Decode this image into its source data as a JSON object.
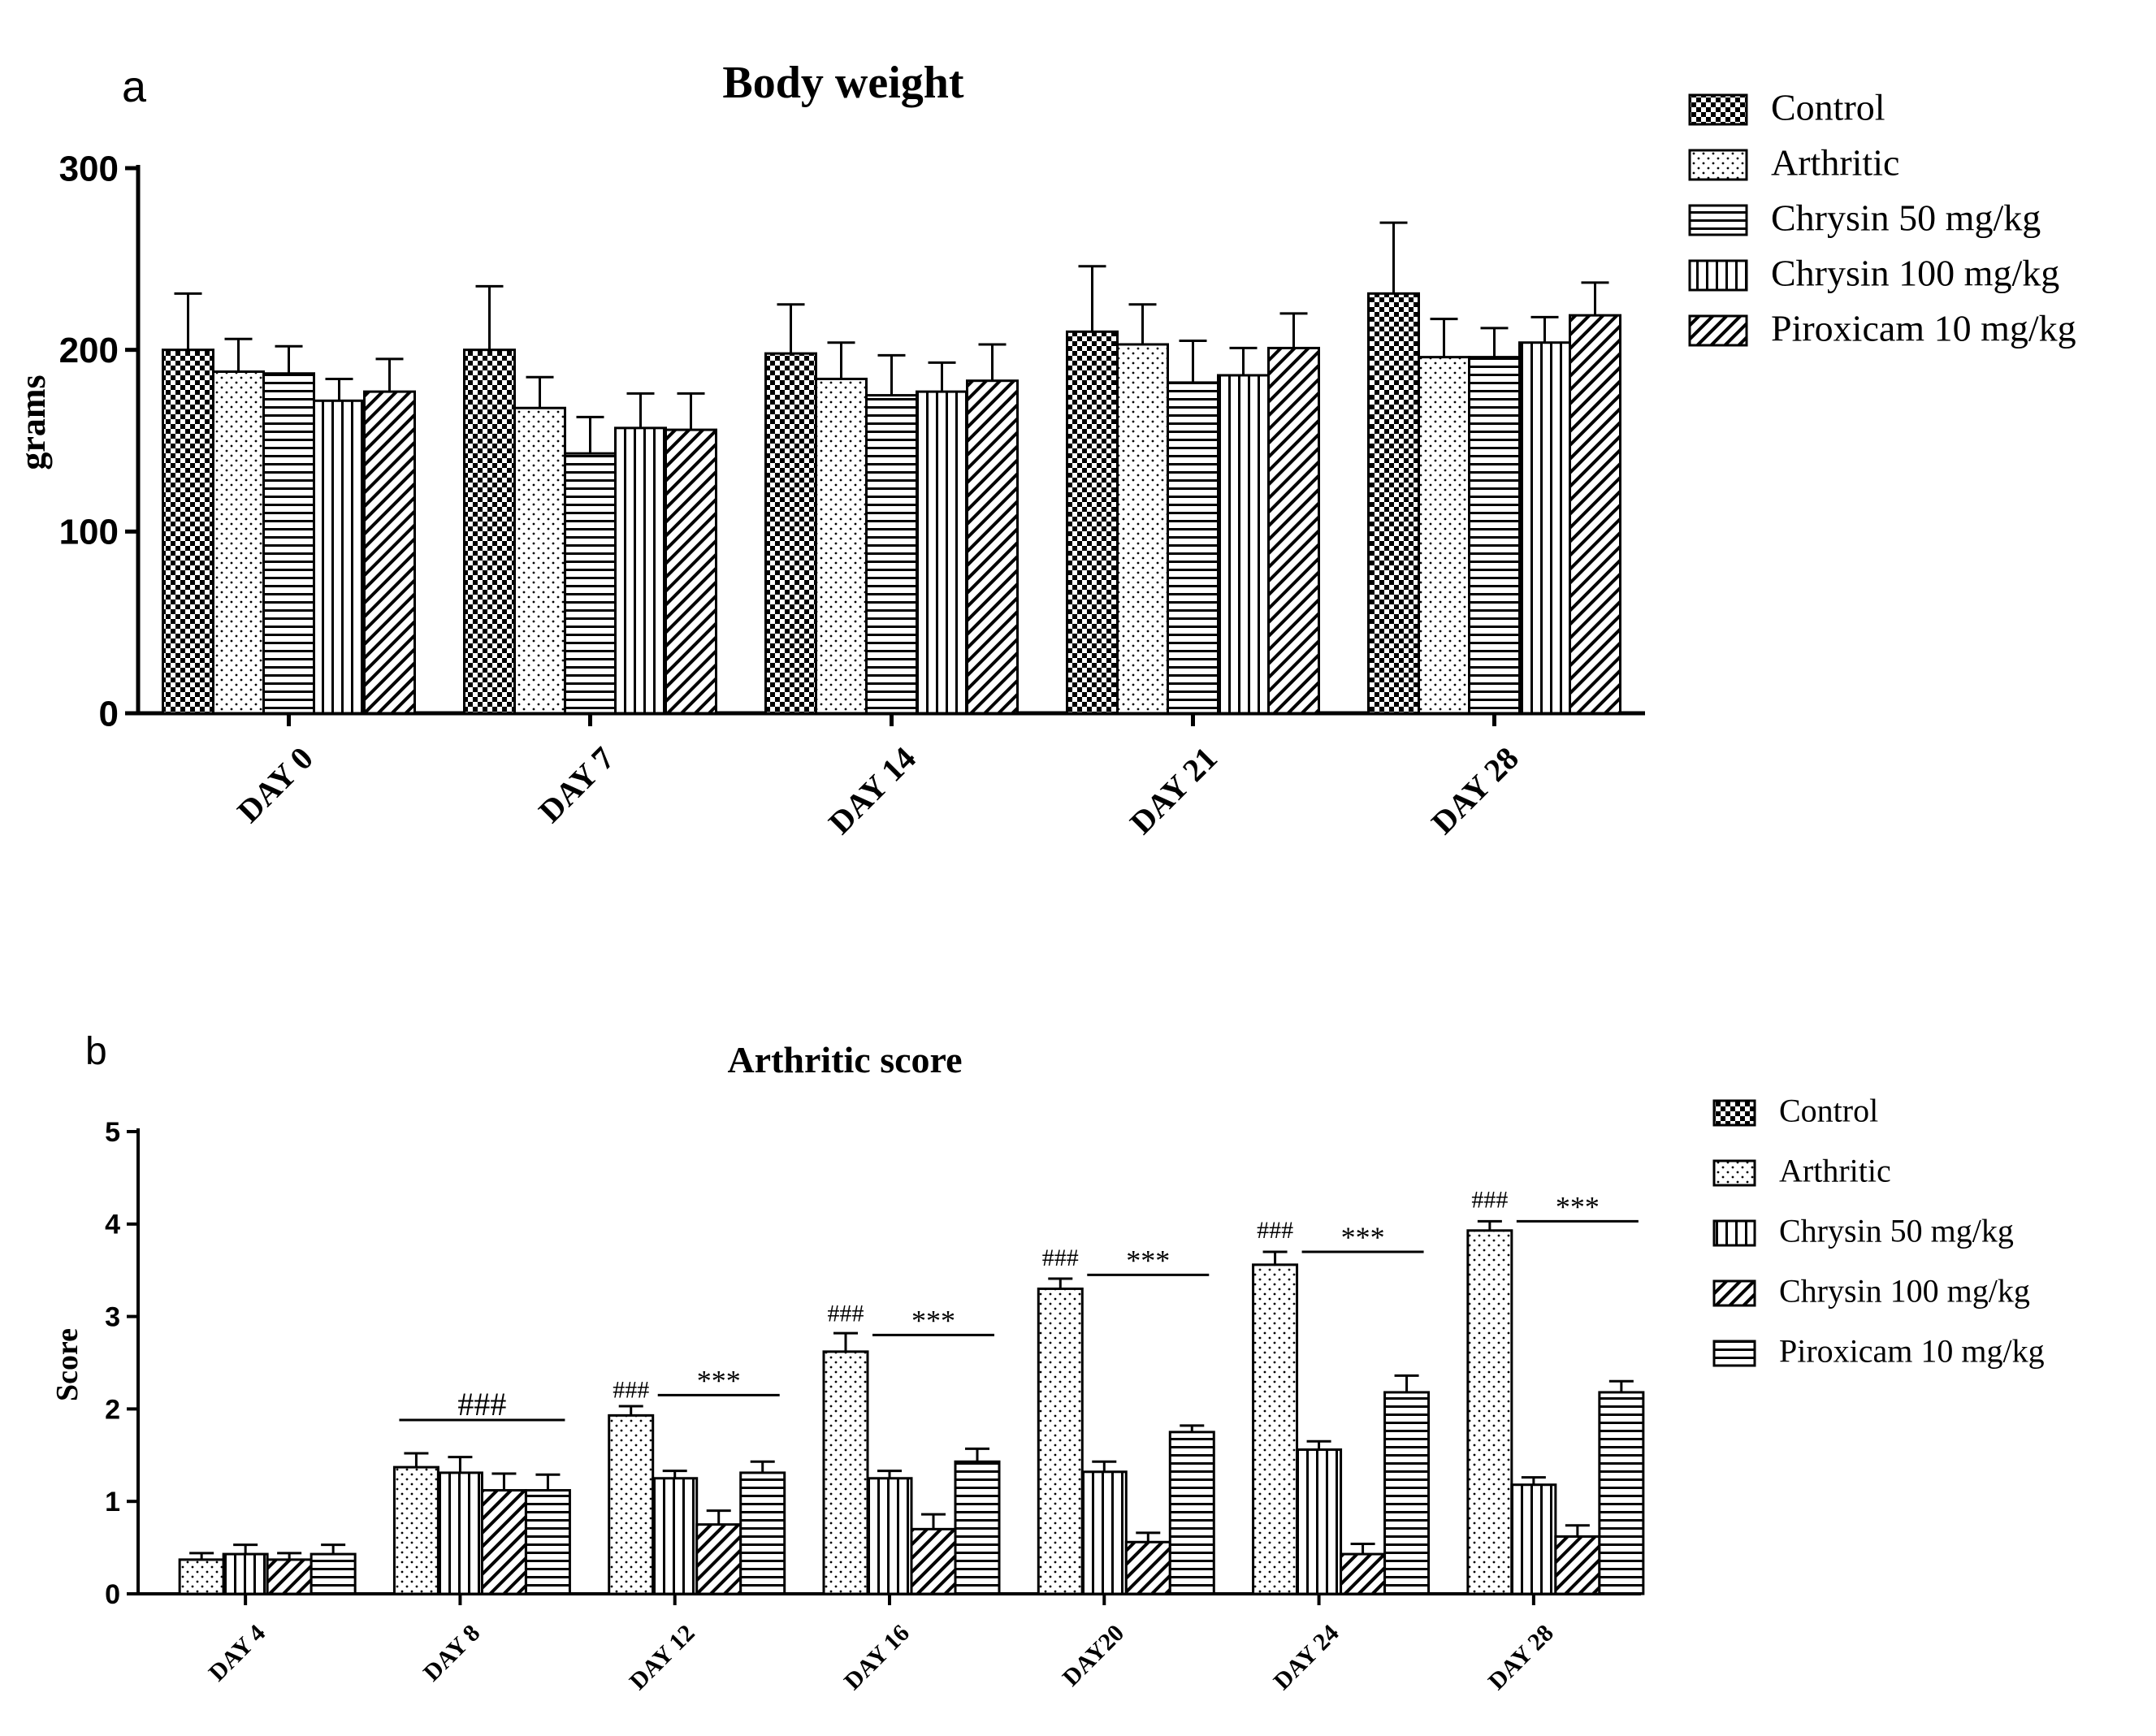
{
  "colors": {
    "ink": "#000000",
    "paper": "#ffffff"
  },
  "chart_data": [
    {
      "panel": "a",
      "type": "bar",
      "title": "Body weight",
      "xlabel": "",
      "ylabel": "grams",
      "ylim": [
        0,
        300
      ],
      "yticks": [
        0,
        100,
        200,
        300
      ],
      "categories": [
        "DAY 0",
        "DAY 7",
        "DAY 14",
        "DAY 21",
        "DAY 28"
      ],
      "legend_position": "top-right",
      "series": [
        {
          "name": "Control",
          "pattern": "checker",
          "values": [
            200,
            200,
            198,
            210,
            231
          ],
          "errors": [
            31,
            35,
            27,
            36,
            39
          ]
        },
        {
          "name": "Arthritic",
          "pattern": "dots",
          "values": [
            188,
            168,
            184,
            203,
            196
          ],
          "errors": [
            18,
            17,
            20,
            22,
            21
          ]
        },
        {
          "name": "Chrysin 50 mg/kg",
          "pattern": "hlines",
          "values": [
            187,
            143,
            175,
            182,
            196
          ],
          "errors": [
            15,
            20,
            22,
            23,
            16
          ]
        },
        {
          "name": "Chrysin 100 mg/kg",
          "pattern": "vlines",
          "values": [
            172,
            157,
            177,
            186,
            204
          ],
          "errors": [
            12,
            19,
            16,
            15,
            14
          ]
        },
        {
          "name": "Piroxicam 10 mg/kg",
          "pattern": "diag",
          "values": [
            177,
            156,
            183,
            201,
            219
          ],
          "errors": [
            18,
            20,
            20,
            19,
            18
          ]
        }
      ]
    },
    {
      "panel": "b",
      "type": "bar",
      "title": "Arthritic score",
      "xlabel": "",
      "ylabel": "Score",
      "ylim": [
        0,
        5
      ],
      "yticks": [
        0,
        1,
        2,
        3,
        4,
        5
      ],
      "categories": [
        "DAY 4",
        "DAY 8",
        "DAY 12",
        "DAY 16",
        "DAY20",
        "DAY 24",
        "DAY 28"
      ],
      "legend_position": "top-right",
      "series": [
        {
          "name": "Control",
          "pattern": "checker",
          "values": [
            0,
            0,
            0,
            0,
            0,
            0,
            0
          ],
          "errors": [
            0,
            0,
            0,
            0,
            0,
            0,
            0
          ]
        },
        {
          "name": "Arthritic",
          "pattern": "dots",
          "values": [
            0.37,
            1.37,
            1.93,
            2.62,
            3.3,
            3.56,
            3.93
          ],
          "errors": [
            0.07,
            0.15,
            0.1,
            0.2,
            0.11,
            0.14,
            0.1
          ]
        },
        {
          "name": "Chrysin 50 mg/kg",
          "pattern": "vlines",
          "values": [
            0.43,
            1.31,
            1.25,
            1.25,
            1.32,
            1.56,
            1.18
          ],
          "errors": [
            0.1,
            0.17,
            0.08,
            0.08,
            0.11,
            0.09,
            0.08
          ]
        },
        {
          "name": "Chrysin 100 mg/kg",
          "pattern": "diag",
          "values": [
            0.37,
            1.12,
            0.75,
            0.7,
            0.56,
            0.43,
            0.62
          ],
          "errors": [
            0.07,
            0.18,
            0.15,
            0.16,
            0.1,
            0.11,
            0.12
          ]
        },
        {
          "name": "Piroxicam 10 mg/kg",
          "pattern": "hlines",
          "values": [
            0.43,
            1.12,
            1.31,
            1.43,
            1.75,
            2.18,
            2.18
          ],
          "errors": [
            0.1,
            0.17,
            0.12,
            0.14,
            0.07,
            0.18,
            0.12
          ]
        }
      ],
      "annotations": [
        {
          "text": "###",
          "category": 1,
          "from_bar": 1,
          "to_bar": 4,
          "y": 1.88,
          "style": "line"
        },
        {
          "text": "###",
          "category": 2,
          "bar": 1,
          "y": 2.12,
          "style": "above-bar"
        },
        {
          "text": "***",
          "category": 2,
          "from_bar": 2,
          "to_bar": 4,
          "y": 2.15,
          "style": "line"
        },
        {
          "text": "###",
          "category": 3,
          "bar": 1,
          "y": 2.95,
          "style": "above-bar"
        },
        {
          "text": "***",
          "category": 3,
          "from_bar": 2,
          "to_bar": 4,
          "y": 2.8,
          "style": "line"
        },
        {
          "text": "###",
          "category": 4,
          "bar": 1,
          "y": 3.55,
          "style": "above-bar"
        },
        {
          "text": "***",
          "category": 4,
          "from_bar": 2,
          "to_bar": 4,
          "y": 3.45,
          "style": "line"
        },
        {
          "text": "###",
          "category": 5,
          "bar": 1,
          "y": 3.85,
          "style": "above-bar"
        },
        {
          "text": "***",
          "category": 5,
          "from_bar": 2,
          "to_bar": 4,
          "y": 3.7,
          "style": "line"
        },
        {
          "text": "###",
          "category": 6,
          "bar": 1,
          "y": 4.18,
          "style": "above-bar"
        },
        {
          "text": "***",
          "category": 6,
          "from_bar": 2,
          "to_bar": 4,
          "y": 4.03,
          "style": "line"
        }
      ]
    }
  ]
}
